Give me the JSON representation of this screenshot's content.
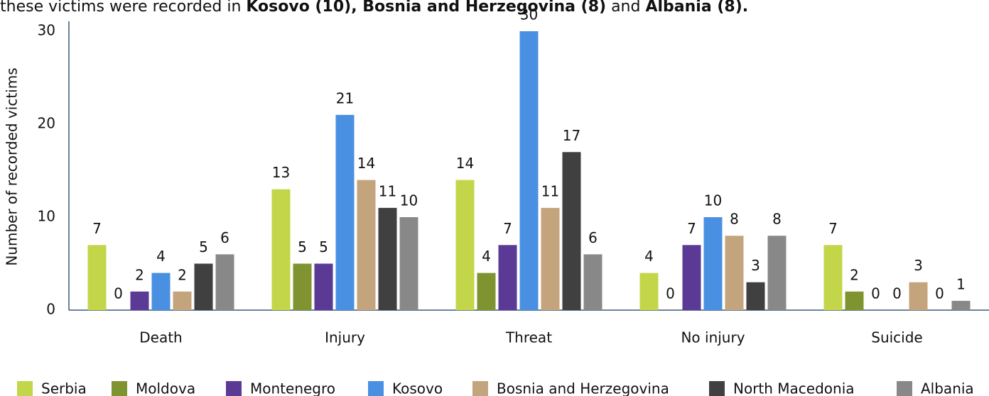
{
  "header": {
    "parts": [
      "these victims were recorded in ",
      "Kosovo (10), Bosnia and Herzegovina (8)",
      " and ",
      "Albania (8)."
    ]
  },
  "chart_data": {
    "type": "bar",
    "y_label": "Number of recorded victims",
    "categories": [
      "Death",
      "Injury",
      "Threat",
      "No injury",
      "Suicide"
    ],
    "series": [
      {
        "name": "Serbia",
        "color": "#c3d64a",
        "values": [
          7,
          13,
          14,
          4,
          7
        ]
      },
      {
        "name": "Moldova",
        "color": "#7f9430",
        "values": [
          0,
          5,
          4,
          0,
          2
        ]
      },
      {
        "name": "Montenegro",
        "color": "#5b3a96",
        "values": [
          2,
          5,
          7,
          7,
          0
        ]
      },
      {
        "name": "Kosovo",
        "color": "#4a90e2",
        "values": [
          4,
          21,
          30,
          10,
          0
        ]
      },
      {
        "name": "Bosnia and Herzegovina",
        "color": "#c4a47c",
        "values": [
          2,
          14,
          11,
          8,
          3
        ]
      },
      {
        "name": "North Macedonia",
        "color": "#404040",
        "values": [
          5,
          11,
          17,
          3,
          0
        ]
      },
      {
        "name": "Albania",
        "color": "#888888",
        "values": [
          6,
          10,
          6,
          8,
          1
        ]
      }
    ],
    "ylim": [
      0,
      30
    ],
    "yticks": [
      0,
      10,
      20,
      30
    ],
    "grid": false,
    "legend": "bottom"
  }
}
